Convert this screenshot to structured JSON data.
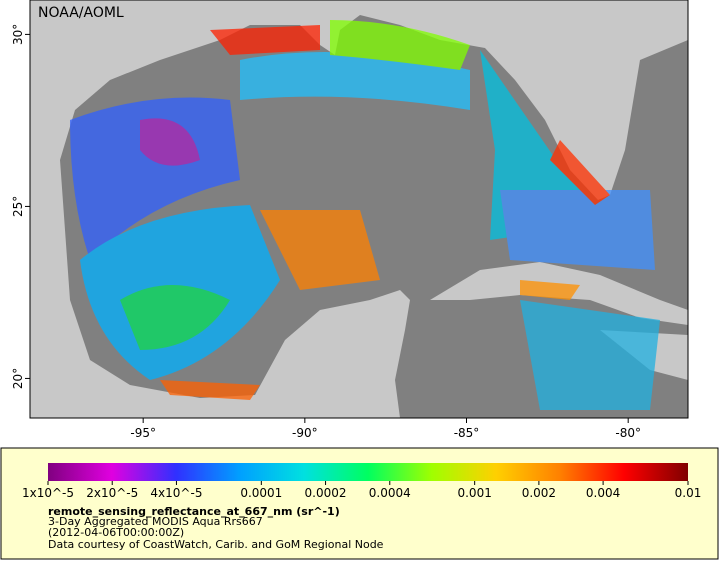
{
  "header": {
    "credit": "NOAA/AOML"
  },
  "map": {
    "xlim": [
      -98.5,
      -78.15
    ],
    "ylim": [
      18.85,
      31.0
    ],
    "xticks": [
      {
        "value": -95,
        "label": "-95°"
      },
      {
        "value": -90,
        "label": "-90°"
      },
      {
        "value": -85,
        "label": "-85°"
      },
      {
        "value": -80,
        "label": "-80°"
      }
    ],
    "yticks": [
      {
        "value": 20,
        "label": "20°"
      },
      {
        "value": 25,
        "label": "25°"
      },
      {
        "value": 30,
        "label": "30°"
      }
    ]
  },
  "colorbar": {
    "scale": "log",
    "lim": [
      1e-05,
      0.01
    ],
    "colors": [
      "#800080",
      "#e000e0",
      "#3030ff",
      "#00a0ff",
      "#00e0e0",
      "#00ff60",
      "#a0ff00",
      "#ffd000",
      "#ff8000",
      "#ff0000",
      "#800000"
    ],
    "ticks": [
      {
        "value": 1e-05,
        "label": "1x10^-5"
      },
      {
        "value": 2e-05,
        "label": "2x10^-5"
      },
      {
        "value": 4e-05,
        "label": "4x10^-5"
      },
      0.0001,
      0.0002,
      0.0004,
      0.001,
      0.002,
      0.004,
      0.01
    ]
  },
  "legend": {
    "variable": "remote_sensing_reflectance_at_667_nm (sr^-1)",
    "title": "3-Day Aggregated MODIS Aqua Rrs667",
    "time": "(2012-04-06T00:00:00Z)",
    "source": "Data courtesy of CoastWatch, Carib. and GoM Regional Node"
  }
}
